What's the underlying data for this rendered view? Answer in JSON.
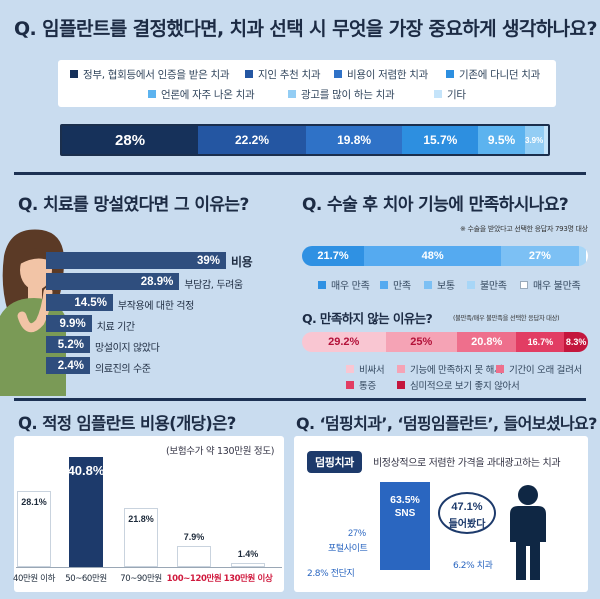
{
  "section1": {
    "title": "Q. 임플란트를 결정했다면, 치과 선택 시 무엇을 가장 중요하게 생각하나요?",
    "legend": [
      {
        "label": "정부, 협회등에서 인증을 받은 치과",
        "color": "#16315a"
      },
      {
        "label": "지인 추천 치과",
        "color": "#2456a2"
      },
      {
        "label": "비용이 저렴한 치과",
        "color": "#2f72c7"
      },
      {
        "label": "기존에 다니던 치과",
        "color": "#2d8fe0"
      },
      {
        "label": "언론에 자주 나온 치과",
        "color": "#5cb3ef"
      },
      {
        "label": "광고를 많이 하는 치과",
        "color": "#93cdf4"
      },
      {
        "label": "기타",
        "color": "#c5e4fa"
      }
    ]
  },
  "section2": {
    "title": "Q. 치료를 망설였다면 그 이유는?",
    "bar_color": "#2f4e7e"
  },
  "section3": {
    "title": "Q. 수술 후 치아 기능에 만족하시나요?",
    "note": "※ 수술을 받았다고 선택한 응답자 793명 대상",
    "legend": [
      {
        "label": "매우 만족",
        "color": "#2f91e3"
      },
      {
        "label": "만족",
        "color": "#55aaf0"
      },
      {
        "label": "보통",
        "color": "#7cc0f4"
      },
      {
        "label": "불만족",
        "color": "#a7d6f7"
      },
      {
        "label": "매우 불만족",
        "color": "#ffffff"
      }
    ],
    "sub_title": "Q. 만족하지 않는 이유는?",
    "sub_note": "(불만족/매우 불만족을 선택한 응답자 대상)",
    "reason_legend": [
      {
        "label": "비싸서",
        "color": "#f9c6d2"
      },
      {
        "label": "기능에 만족하지 못 해서",
        "color": "#f5a3b5"
      },
      {
        "label": "기간이 오래 걸려서",
        "color": "#ee6f8c"
      },
      {
        "label": "통증",
        "color": "#e23d63"
      },
      {
        "label": "심미적으로 보기 좋지 않아서",
        "color": "#c4163d"
      }
    ]
  },
  "section4": {
    "title": "Q. 적정 임플란트 비용(개당)은?",
    "note": "(보험수가 약 130만원 정도)"
  },
  "section5": {
    "title": "Q. ‘덤핑치과’, ‘덤핑임플란트’, 들어보셨나요?",
    "badge": "덤핑치과",
    "definition": "비정상적으로 저렴한 가격을 과대광고하는 치과",
    "sns_value": "63.5%",
    "sns_label": "SNS",
    "heard_value": "47.1%",
    "heard_label": "들어봤다",
    "portal_value": "27%",
    "portal_label": "포털사이트",
    "flyer_label": "2.8% 전단지",
    "clinic_label": "6.2% 치과"
  },
  "chart_data": [
    {
      "type": "bar",
      "orientation": "stacked-horizontal",
      "title": "Q. 임플란트를 결정했다면, 치과 선택 시 무엇을 가장 중요하게 생각하나요?",
      "categories": [
        "정부, 협회등에서 인증을 받은 치과",
        "지인 추천 치과",
        "비용이 저렴한 치과",
        "기존에 다니던 치과",
        "언론에 자주 나온 치과",
        "광고를 많이 하는 치과",
        "기타"
      ],
      "values": [
        28,
        22.2,
        19.8,
        15.7,
        9.5,
        3.9,
        0.9
      ],
      "labels": [
        "28%",
        "22.2%",
        "19.8%",
        "15.7%",
        "9.5%",
        "3.9%",
        ""
      ],
      "colors": [
        "#16315a",
        "#2456a2",
        "#2f72c7",
        "#2d8fe0",
        "#5cb3ef",
        "#93cdf4",
        "#c5e4fa"
      ]
    },
    {
      "type": "bar",
      "orientation": "horizontal",
      "title": "Q. 치료를 망설였다면 그 이유는?",
      "categories": [
        "비용",
        "부담감, 두려움",
        "부작용에 대한 걱정",
        "치료 기간",
        "망설이지 않았다",
        "의료진의 수준"
      ],
      "values": [
        39,
        28.9,
        14.5,
        9.9,
        5.2,
        2.4
      ],
      "labels": [
        "39%",
        "28.9%",
        "14.5%",
        "9.9%",
        "5.2%",
        "2.4%"
      ]
    },
    {
      "type": "bar",
      "orientation": "stacked-horizontal",
      "title": "Q. 수술 후 치아 기능에 만족하시나요?",
      "categories": [
        "매우 만족",
        "만족",
        "보통",
        "불만족",
        "매우 불만족"
      ],
      "values": [
        21.7,
        48,
        27,
        2.5,
        0.8
      ],
      "labels": [
        "21.7%",
        "48%",
        "27%",
        "",
        ""
      ],
      "colors": [
        "#2f91e3",
        "#55aaf0",
        "#7cc0f4",
        "#a7d6f7",
        "#ffffff"
      ]
    },
    {
      "type": "bar",
      "orientation": "stacked-horizontal",
      "title": "Q. 만족하지 않는 이유는?",
      "categories": [
        "비싸서",
        "기능에 만족하지 못 해서",
        "기간이 오래 걸려서",
        "통증",
        "심미적으로 보기 좋지 않아서"
      ],
      "values": [
        29.2,
        25,
        20.8,
        16.7,
        8.3
      ],
      "labels": [
        "29.2%",
        "25%",
        "20.8%",
        "16.7%",
        "8.3%"
      ],
      "colors": [
        "#f9c6d2",
        "#f5a3b5",
        "#ee6f8c",
        "#e23d63",
        "#c4163d"
      ]
    },
    {
      "type": "bar",
      "orientation": "vertical",
      "title": "Q. 적정 임플란트 비용(개당)은?",
      "categories": [
        "40만원 이하",
        "50~60만원",
        "70~90만원",
        "100~120만원",
        "130만원 이상"
      ],
      "values": [
        28.1,
        40.8,
        21.8,
        7.9,
        1.4
      ],
      "labels": [
        "28.1%",
        "40.8%",
        "21.8%",
        "7.9%",
        "1.4%"
      ]
    }
  ]
}
